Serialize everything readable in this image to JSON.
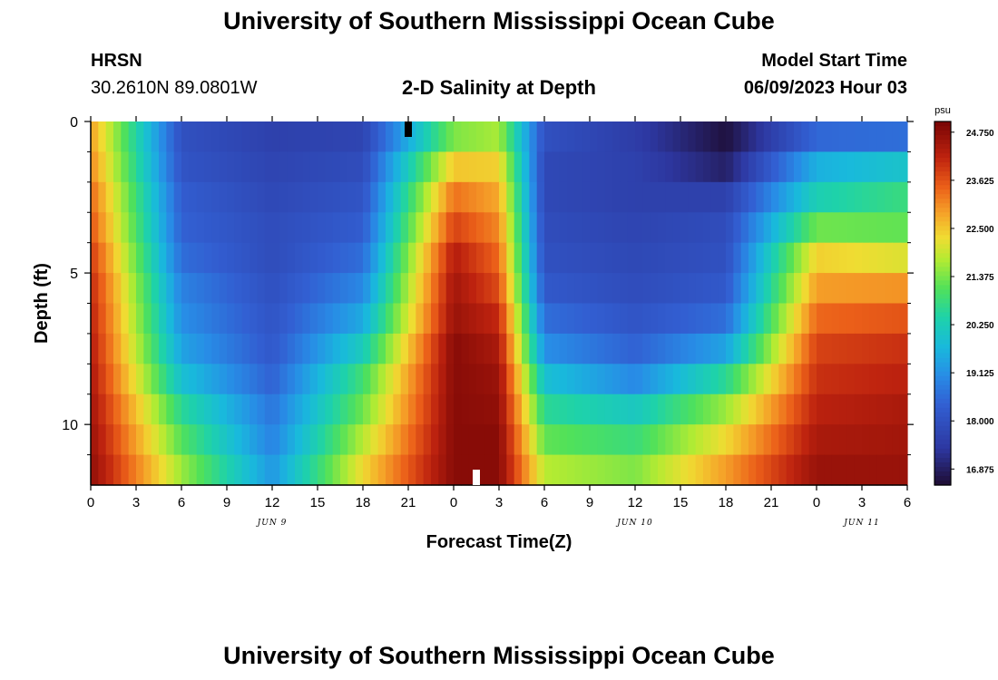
{
  "page": {
    "title": "University of Southern Mississippi Ocean Cube",
    "station_code": "HRSN",
    "station_coords": "30.2610N  89.0801W",
    "chart_title": "2-D Salinity at Depth",
    "model_start_label": "Model Start Time",
    "model_start_value": "06/09/2023 Hour 03",
    "bottom_title": "University of Southern Mississippi Ocean Cube"
  },
  "chart_data": {
    "type": "heatmap",
    "title": "2-D Salinity at Depth",
    "xlabel": "Forecast Time(Z)",
    "ylabel": "Depth (ft)",
    "x_tick_labels": [
      "0",
      "3",
      "6",
      "9",
      "12",
      "15",
      "18",
      "21",
      "0",
      "3",
      "6",
      "9",
      "12",
      "15",
      "18",
      "21",
      "0",
      "3",
      "6"
    ],
    "date_labels": [
      "JUN 9",
      "JUN 10",
      "JUN 11"
    ],
    "y_tick_labels": [
      "0",
      "5",
      "10"
    ],
    "ylim": [
      0,
      12
    ],
    "x_range_hours": [
      0,
      54
    ],
    "colorbar": {
      "unit": "psu",
      "ticks": [
        "24.750",
        "23.625",
        "22.500",
        "21.375",
        "20.250",
        "19.125",
        "18.000",
        "16.875"
      ],
      "range": [
        16.5,
        25.0
      ]
    },
    "depth_levels_ft": [
      0.5,
      1.5,
      2.5,
      3.5,
      4.5,
      5.5,
      6.5,
      7.5,
      8.5,
      9.5,
      10.5,
      11.5
    ],
    "time_hours": [
      0,
      6,
      12,
      18,
      24,
      27,
      30,
      36,
      42,
      48,
      54
    ],
    "salinity_psu": [
      [
        22.9,
        18.0,
        17.6,
        17.7,
        21.4,
        21.7,
        18.0,
        17.5,
        16.6,
        18.5,
        18.6
      ],
      [
        23.1,
        18.1,
        17.7,
        17.9,
        22.5,
        22.4,
        17.8,
        17.6,
        16.9,
        19.6,
        20.0
      ],
      [
        23.4,
        18.3,
        17.8,
        18.1,
        23.3,
        22.8,
        17.8,
        17.6,
        17.6,
        20.3,
        20.8
      ],
      [
        23.6,
        18.4,
        17.9,
        18.3,
        23.8,
        23.1,
        17.9,
        17.7,
        17.9,
        21.3,
        21.2
      ],
      [
        23.9,
        18.6,
        17.9,
        18.6,
        24.3,
        23.4,
        18.0,
        17.8,
        18.0,
        22.4,
        22.1
      ],
      [
        24.1,
        18.9,
        18.0,
        19.0,
        24.5,
        23.7,
        18.2,
        17.9,
        18.2,
        22.9,
        23.0
      ],
      [
        24.2,
        19.1,
        18.1,
        19.5,
        24.6,
        24.1,
        18.6,
        18.1,
        18.6,
        23.4,
        23.6
      ],
      [
        24.3,
        19.4,
        18.2,
        20.2,
        24.8,
        24.4,
        19.1,
        18.4,
        19.4,
        23.8,
        24.0
      ],
      [
        24.4,
        19.9,
        18.4,
        20.9,
        24.8,
        24.6,
        19.9,
        19.0,
        20.6,
        24.0,
        24.2
      ],
      [
        24.5,
        20.6,
        18.7,
        21.3,
        24.8,
        24.7,
        20.6,
        20.1,
        21.6,
        24.2,
        24.4
      ],
      [
        24.6,
        21.1,
        18.9,
        21.8,
        24.8,
        24.8,
        21.2,
        20.8,
        22.3,
        24.4,
        24.5
      ],
      [
        24.7,
        21.6,
        19.2,
        22.3,
        24.8,
        24.8,
        21.8,
        21.4,
        22.9,
        24.6,
        24.6
      ]
    ]
  }
}
